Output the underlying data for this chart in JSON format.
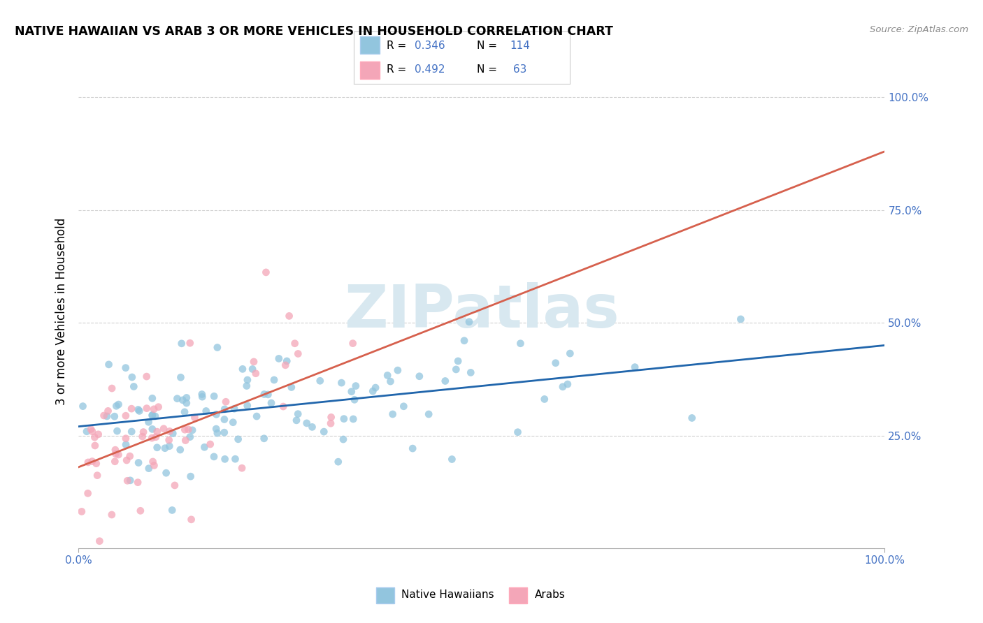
{
  "title": "NATIVE HAWAIIAN VS ARAB 3 OR MORE VEHICLES IN HOUSEHOLD CORRELATION CHART",
  "source": "Source: ZipAtlas.com",
  "ylabel": "3 or more Vehicles in Household",
  "xlim": [
    0.0,
    1.0
  ],
  "ylim": [
    0.0,
    1.05
  ],
  "blue_color": "#92c5de",
  "pink_color": "#f4a6b8",
  "blue_line_color": "#2166ac",
  "pink_line_color": "#d6604d",
  "ytick_vals": [
    0.25,
    0.5,
    0.75,
    1.0
  ],
  "background_color": "#ffffff",
  "grid_color": "#d0d0d0",
  "blue_r_text": "0.346",
  "blue_n_text": "114",
  "pink_r_text": "0.492",
  "pink_n_text": " 63",
  "text_color_rn": "#4472c4",
  "watermark_color": "#d8e8f0",
  "watermark_text": "ZIPatlas"
}
